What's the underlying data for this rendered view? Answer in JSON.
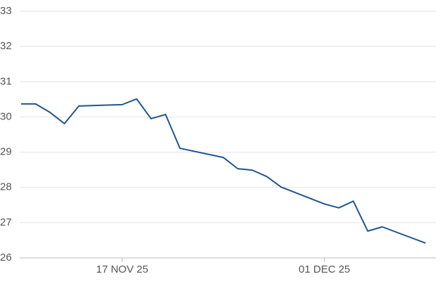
{
  "chart_data": {
    "type": "line",
    "x": [
      "2025-11-10",
      "2025-11-11",
      "2025-11-12",
      "2025-11-13",
      "2025-11-14",
      "2025-11-17",
      "2025-11-18",
      "2025-11-19",
      "2025-11-20",
      "2025-11-21",
      "2025-11-24",
      "2025-11-25",
      "2025-11-26",
      "2025-11-27",
      "2025-11-28",
      "2025-12-01",
      "2025-12-02",
      "2025-12-03",
      "2025-12-04",
      "2025-12-05",
      "2025-12-08"
    ],
    "values": [
      30.37,
      30.37,
      30.13,
      29.81,
      30.31,
      30.35,
      30.51,
      29.95,
      30.07,
      29.11,
      28.85,
      28.53,
      28.49,
      28.31,
      28.01,
      27.53,
      27.42,
      27.61,
      26.76,
      26.88,
      26.42
    ],
    "color": "#1f5591",
    "xlim": [
      "2025-11-10",
      "2025-12-09"
    ],
    "xticks": [
      {
        "value": "2025-11-17",
        "label": "17 NOV 25"
      },
      {
        "value": "2025-12-01",
        "label": "01 DEC 25"
      }
    ],
    "ylim": [
      26,
      33
    ],
    "yticks": [
      26,
      27,
      28,
      29,
      30,
      31,
      32,
      33
    ],
    "grid": true
  }
}
